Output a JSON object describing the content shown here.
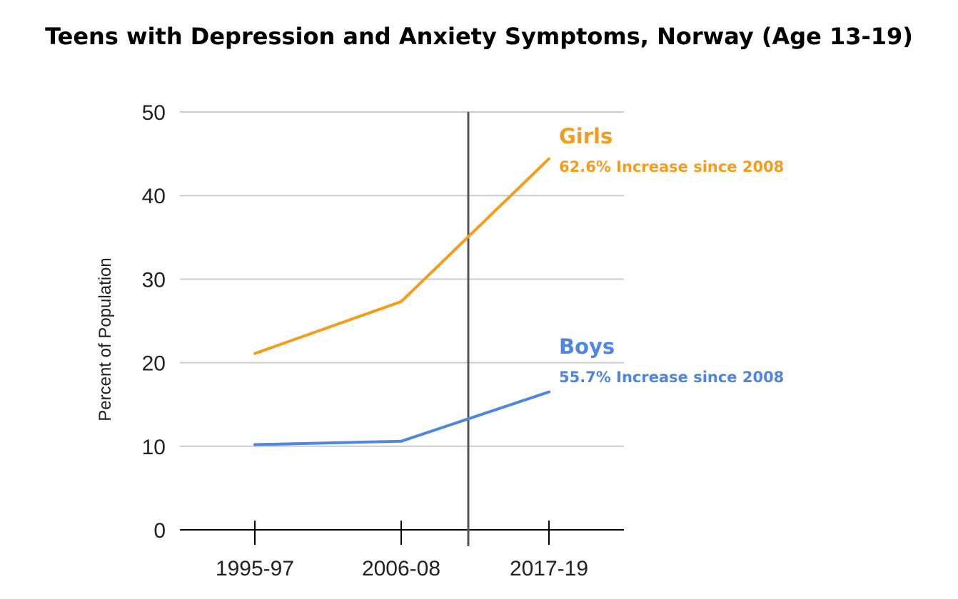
{
  "chart_data": {
    "type": "line",
    "title": "Teens with Depression and Anxiety Symptoms, Norway (Age 13-19)",
    "xlabel": "",
    "ylabel": "Percent of Population",
    "categories": [
      "1995-97",
      "2006-08",
      "2017-19"
    ],
    "ylim": [
      0,
      50
    ],
    "yticks": [
      "0",
      "10",
      "20",
      "30",
      "40",
      "50"
    ],
    "grid": true,
    "reference_line": {
      "between": [
        "2006-08",
        "2017-19"
      ]
    },
    "series": [
      {
        "name": "Girls",
        "values": [
          21.1,
          27.3,
          44.4
        ],
        "color": "#f59c1a",
        "annotation": "62.6% Increase since 2008"
      },
      {
        "name": "Boys",
        "values": [
          10.2,
          10.6,
          16.5
        ],
        "color": "#4f86e3",
        "annotation": "55.7% Increase since 2008"
      }
    ],
    "colors": {
      "grid": "#cccccc",
      "axis": "#000000",
      "reference_line": "#555555"
    }
  }
}
